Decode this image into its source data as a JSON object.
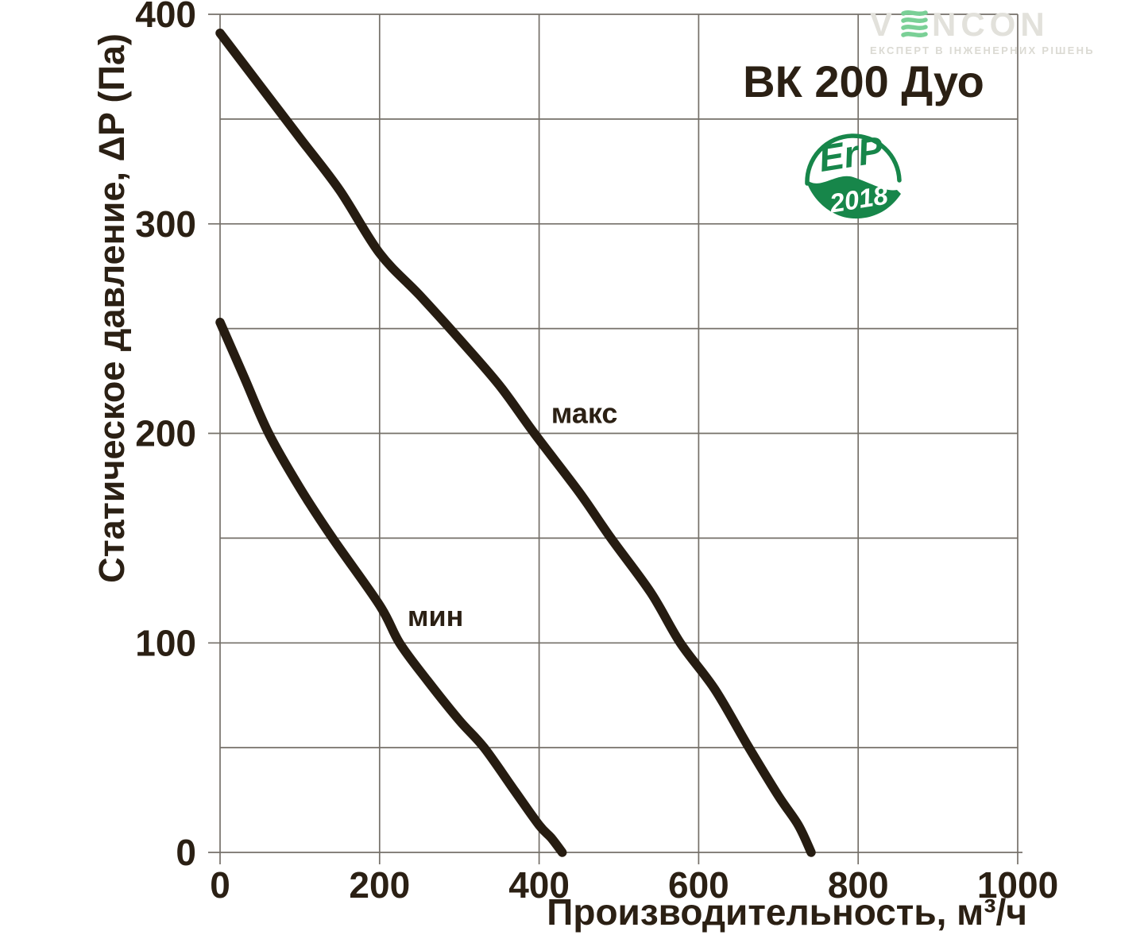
{
  "page": {
    "background": "#ffffff"
  },
  "brand_logo": {
    "name": "VENCON",
    "letters_before_wave": "V",
    "letters_after_wave": "NCON",
    "tagline": "ЕКСПЕРТ В ІНЖЕНЕРНИХ РІШЕНЬ",
    "letter_color": "#e2e1db",
    "wave_color": "#7ad096",
    "tagline_color": "#dbdad3"
  },
  "erp_badge": {
    "label": "ErP",
    "year": "2018",
    "green": "#17864a"
  },
  "chart_data": {
    "type": "line",
    "title": "ВК 200 Дуо",
    "xlabel": "Производительность, м³/ч",
    "ylabel": "Статическое давление, ΔP (Па)",
    "xlim": [
      0,
      1000
    ],
    "ylim": [
      0,
      400
    ],
    "x_ticks": [
      0,
      200,
      400,
      600,
      800,
      1000
    ],
    "y_ticks": [
      0,
      100,
      200,
      300,
      400
    ],
    "x_grid_step": 200,
    "y_grid_step": 50,
    "grid": true,
    "legend_position": "inline-labels",
    "curve_color": "#261c11",
    "grid_color": "#757069",
    "text_color": "#2b2014",
    "series": [
      {
        "name": "макс",
        "points": [
          [
            0,
            391
          ],
          [
            50,
            366
          ],
          [
            100,
            341
          ],
          [
            150,
            316
          ],
          [
            200,
            286
          ],
          [
            250,
            266
          ],
          [
            300,
            245
          ],
          [
            350,
            223
          ],
          [
            394,
            200
          ],
          [
            450,
            172
          ],
          [
            490,
            150
          ],
          [
            540,
            124
          ],
          [
            577,
            100
          ],
          [
            620,
            78
          ],
          [
            660,
            52
          ],
          [
            700,
            27
          ],
          [
            725,
            13
          ],
          [
            741,
            0
          ]
        ]
      },
      {
        "name": "мин",
        "points": [
          [
            0,
            253
          ],
          [
            30,
            227
          ],
          [
            61,
            200
          ],
          [
            100,
            174
          ],
          [
            141,
            150
          ],
          [
            200,
            118
          ],
          [
            225,
            100
          ],
          [
            260,
            82
          ],
          [
            300,
            63
          ],
          [
            331,
            50
          ],
          [
            370,
            29
          ],
          [
            400,
            13
          ],
          [
            415,
            7
          ],
          [
            429,
            0
          ]
        ]
      }
    ],
    "annotations": [
      {
        "text": "макс",
        "x": 415,
        "y": 205
      },
      {
        "text": "мин",
        "x": 235,
        "y": 108
      }
    ]
  }
}
